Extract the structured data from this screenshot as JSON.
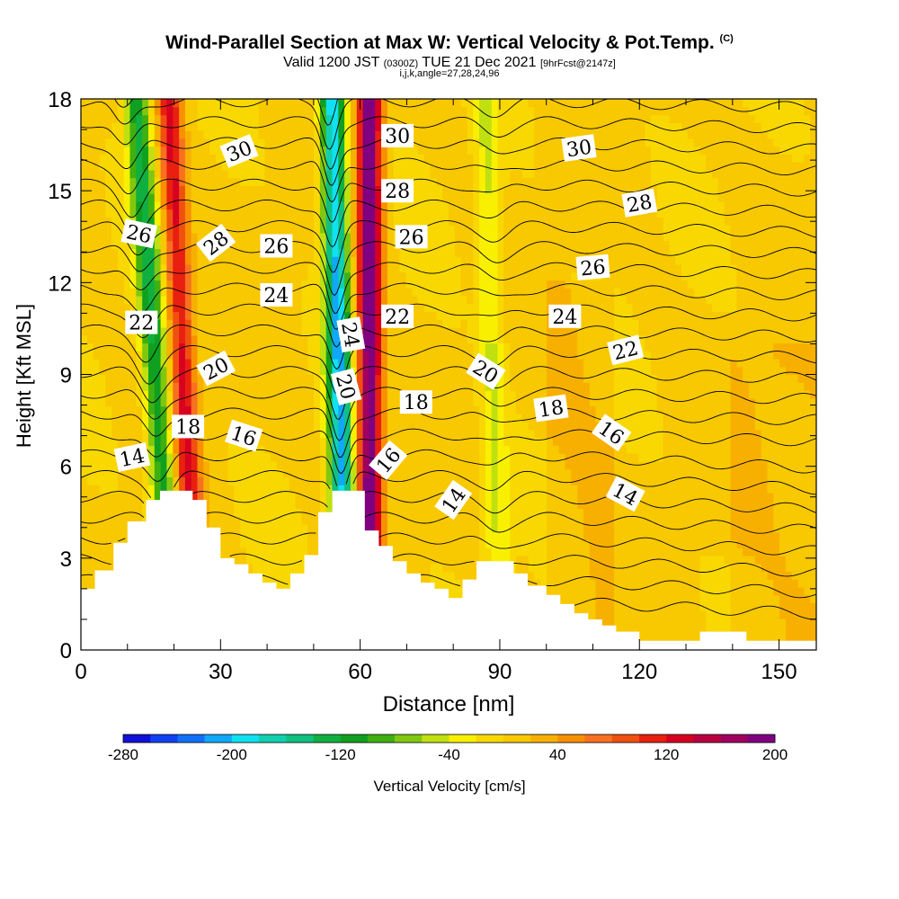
{
  "titles": {
    "main": "Wind-Parallel Section at Max W: Vertical Velocity & Pot.Temp.",
    "mark": "(C)",
    "valid_a": "Valid 1200 JST",
    "valid_b": "(0300Z)",
    "valid_c": "TUE 21 Dec 2021",
    "valid_d": "[9hrFcst@2147z]",
    "indices": "i,j,k,angle=27,28,24,96"
  },
  "chart_data": {
    "type": "heatmap",
    "xlabel": "Distance [nm]",
    "ylabel": "Height [Kft MSL]",
    "xlim": [
      0,
      158
    ],
    "ylim": [
      0,
      18
    ],
    "x_ticks": [
      0,
      30,
      60,
      90,
      120,
      150
    ],
    "y_ticks": [
      0,
      3,
      6,
      9,
      12,
      15,
      18
    ],
    "terrain_top_kft": [
      [
        0,
        2
      ],
      [
        3,
        2.6
      ],
      [
        7,
        3.5
      ],
      [
        10,
        4.2
      ],
      [
        14,
        4.9
      ],
      [
        17,
        5.2
      ],
      [
        21,
        5.2
      ],
      [
        24,
        4.9
      ],
      [
        27,
        4
      ],
      [
        30,
        3
      ],
      [
        33,
        2.8
      ],
      [
        36,
        2.5
      ],
      [
        39,
        2.2
      ],
      [
        42,
        2
      ],
      [
        45,
        2.5
      ],
      [
        48,
        3.1
      ],
      [
        51,
        4.5
      ],
      [
        54,
        5.2
      ],
      [
        58,
        5.2
      ],
      [
        61,
        3.9
      ],
      [
        64,
        3.4
      ],
      [
        67,
        2.9
      ],
      [
        70,
        2.5
      ],
      [
        73,
        2.2
      ],
      [
        76,
        2
      ],
      [
        79,
        1.7
      ],
      [
        82,
        2.3
      ],
      [
        85,
        2.9
      ],
      [
        90,
        2.9
      ],
      [
        93,
        2.5
      ],
      [
        96,
        2.1
      ],
      [
        100,
        1.8
      ],
      [
        103,
        1.5
      ],
      [
        106,
        1.2
      ],
      [
        109,
        1
      ],
      [
        112,
        0.8
      ],
      [
        115,
        0.6
      ],
      [
        120,
        0.3
      ],
      [
        130,
        0.3
      ],
      [
        133,
        0.6
      ],
      [
        140,
        0.6
      ],
      [
        143,
        0.3
      ],
      [
        158,
        0.3
      ]
    ],
    "color_scale": {
      "label": "Vertical Velocity [cm/s]",
      "levels": [
        -280,
        -260,
        -240,
        -220,
        -200,
        -180,
        -160,
        -140,
        -120,
        -100,
        -80,
        -60,
        -40,
        -20,
        0,
        20,
        40,
        60,
        80,
        100,
        120,
        140,
        160,
        180,
        200
      ],
      "tick_labels": [
        -280,
        -200,
        -120,
        -40,
        40,
        120,
        200
      ],
      "colors": [
        "#1010d8",
        "#1040f0",
        "#1070f8",
        "#10a8f8",
        "#10e0f0",
        "#10d0b0",
        "#10c080",
        "#10b040",
        "#10a020",
        "#40b010",
        "#80c810",
        "#c0e010",
        "#f8f000",
        "#f8d800",
        "#f8c800",
        "#f8b000",
        "#f89000",
        "#f87020",
        "#f05010",
        "#e82010",
        "#d80020",
        "#b80040",
        "#a00060",
        "#800080"
      ],
      "field": [
        {
          "name": "downdraft-band-1",
          "x_bottom": 20,
          "x_top": 12,
          "vmin": -130
        },
        {
          "name": "updraft-band-1",
          "x_bottom": 25,
          "x_top": 19,
          "vmax": 120
        },
        {
          "name": "downdraft-band-2",
          "x_bottom": 57,
          "x_top": 54,
          "vmin": -210
        },
        {
          "name": "updraft-band-2",
          "x_bottom": 62,
          "x_top": 62,
          "vmax": 200
        },
        {
          "name": "weak-downdraft-band-3",
          "x_bottom": 90,
          "x_top": 87,
          "vmin": -50
        }
      ]
    },
    "isentropes": {
      "labels": [
        {
          "text": "30",
          "x": 34,
          "y": 16.3,
          "angle": -22
        },
        {
          "text": "28",
          "x": 29,
          "y": 13.3,
          "angle": -38
        },
        {
          "text": "26",
          "x": 12.5,
          "y": 13.6,
          "angle": 12
        },
        {
          "text": "22",
          "x": 13,
          "y": 10.7,
          "angle": 0
        },
        {
          "text": "20",
          "x": 29,
          "y": 9.2,
          "angle": -28
        },
        {
          "text": "18",
          "x": 23,
          "y": 7.3,
          "angle": 0
        },
        {
          "text": "14",
          "x": 11,
          "y": 6.3,
          "angle": -12
        },
        {
          "text": "16",
          "x": 35,
          "y": 7.0,
          "angle": 18
        },
        {
          "text": "26",
          "x": 42,
          "y": 13.2,
          "angle": 0
        },
        {
          "text": "24",
          "x": 42,
          "y": 11.6,
          "angle": 0
        },
        {
          "text": "24",
          "x": 58,
          "y": 10.3,
          "angle": 80
        },
        {
          "text": "20",
          "x": 57,
          "y": 8.6,
          "angle": 75
        },
        {
          "text": "30",
          "x": 68,
          "y": 16.8,
          "angle": 0
        },
        {
          "text": "28",
          "x": 68,
          "y": 15.0,
          "angle": 0
        },
        {
          "text": "26",
          "x": 71,
          "y": 13.5,
          "angle": 0
        },
        {
          "text": "22",
          "x": 68,
          "y": 10.9,
          "angle": 0
        },
        {
          "text": "18",
          "x": 72,
          "y": 8.1,
          "angle": 0
        },
        {
          "text": "16",
          "x": 66,
          "y": 6.2,
          "angle": -50
        },
        {
          "text": "14",
          "x": 80,
          "y": 4.9,
          "angle": -55
        },
        {
          "text": "20",
          "x": 87,
          "y": 9.1,
          "angle": 32
        },
        {
          "text": "30",
          "x": 107,
          "y": 16.4,
          "angle": -8
        },
        {
          "text": "28",
          "x": 120,
          "y": 14.6,
          "angle": -10
        },
        {
          "text": "26",
          "x": 110,
          "y": 12.5,
          "angle": -5
        },
        {
          "text": "24",
          "x": 104,
          "y": 10.9,
          "angle": 0
        },
        {
          "text": "22",
          "x": 117,
          "y": 9.8,
          "angle": -14
        },
        {
          "text": "18",
          "x": 101,
          "y": 7.9,
          "angle": -8
        },
        {
          "text": "16",
          "x": 114,
          "y": 7.1,
          "angle": 35
        },
        {
          "text": "14",
          "x": 117,
          "y": 5.1,
          "angle": 28
        }
      ]
    }
  }
}
